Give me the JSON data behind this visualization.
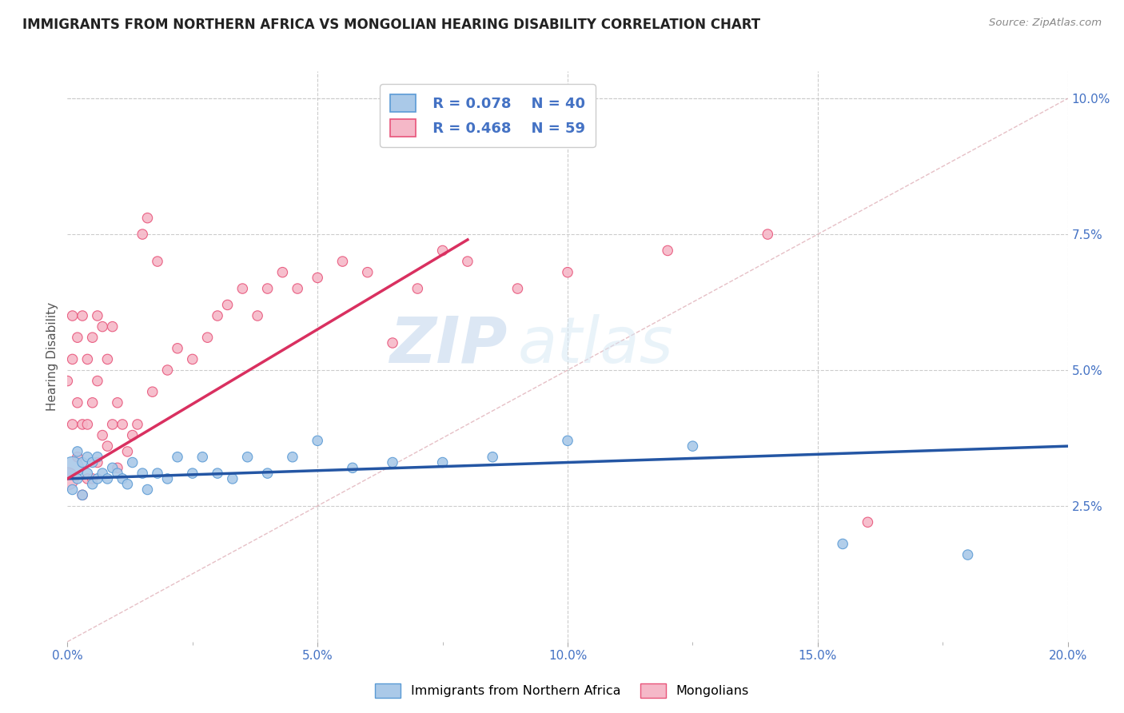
{
  "title": "IMMIGRANTS FROM NORTHERN AFRICA VS MONGOLIAN HEARING DISABILITY CORRELATION CHART",
  "source": "Source: ZipAtlas.com",
  "ylabel": "Hearing Disability",
  "watermark_zip": "ZIP",
  "watermark_atlas": "atlas",
  "xlim": [
    0.0,
    0.2
  ],
  "ylim": [
    0.0,
    0.105
  ],
  "blue_R": "0.078",
  "blue_N": 40,
  "pink_R": "0.468",
  "pink_N": 59,
  "blue_color": "#aac9e8",
  "pink_color": "#f5b8c8",
  "blue_edge_color": "#5b9bd5",
  "pink_edge_color": "#e8547a",
  "blue_line_color": "#2456a4",
  "pink_line_color": "#d93060",
  "background_color": "#ffffff",
  "grid_color": "#cccccc",
  "legend_label_blue": "Immigrants from Northern Africa",
  "legend_label_pink": "Mongolians",
  "blue_scatter_x": [
    0.001,
    0.001,
    0.002,
    0.002,
    0.003,
    0.003,
    0.004,
    0.004,
    0.005,
    0.005,
    0.006,
    0.006,
    0.007,
    0.008,
    0.009,
    0.01,
    0.011,
    0.012,
    0.013,
    0.015,
    0.016,
    0.018,
    0.02,
    0.022,
    0.025,
    0.027,
    0.03,
    0.033,
    0.036,
    0.04,
    0.045,
    0.05,
    0.057,
    0.065,
    0.075,
    0.085,
    0.1,
    0.125,
    0.155,
    0.18
  ],
  "blue_scatter_y": [
    0.032,
    0.028,
    0.035,
    0.03,
    0.033,
    0.027,
    0.031,
    0.034,
    0.029,
    0.033,
    0.03,
    0.034,
    0.031,
    0.03,
    0.032,
    0.031,
    0.03,
    0.029,
    0.033,
    0.031,
    0.028,
    0.031,
    0.03,
    0.034,
    0.031,
    0.034,
    0.031,
    0.03,
    0.034,
    0.031,
    0.034,
    0.037,
    0.032,
    0.033,
    0.033,
    0.034,
    0.037,
    0.036,
    0.018,
    0.016
  ],
  "blue_scatter_size": [
    400,
    80,
    80,
    80,
    80,
    80,
    80,
    80,
    80,
    80,
    80,
    80,
    80,
    80,
    80,
    80,
    80,
    80,
    80,
    80,
    80,
    80,
    80,
    80,
    80,
    80,
    80,
    80,
    80,
    80,
    80,
    80,
    80,
    80,
    80,
    80,
    80,
    80,
    80,
    80
  ],
  "pink_scatter_x": [
    0.0,
    0.0,
    0.001,
    0.001,
    0.001,
    0.002,
    0.002,
    0.002,
    0.003,
    0.003,
    0.003,
    0.004,
    0.004,
    0.004,
    0.005,
    0.005,
    0.005,
    0.006,
    0.006,
    0.006,
    0.007,
    0.007,
    0.008,
    0.008,
    0.009,
    0.009,
    0.01,
    0.01,
    0.011,
    0.012,
    0.013,
    0.014,
    0.015,
    0.016,
    0.017,
    0.018,
    0.02,
    0.022,
    0.025,
    0.028,
    0.03,
    0.032,
    0.035,
    0.038,
    0.04,
    0.043,
    0.046,
    0.05,
    0.055,
    0.06,
    0.065,
    0.07,
    0.075,
    0.08,
    0.09,
    0.1,
    0.12,
    0.14,
    0.16
  ],
  "pink_scatter_y": [
    0.03,
    0.048,
    0.04,
    0.052,
    0.06,
    0.034,
    0.044,
    0.056,
    0.027,
    0.04,
    0.06,
    0.03,
    0.04,
    0.052,
    0.03,
    0.044,
    0.056,
    0.033,
    0.048,
    0.06,
    0.038,
    0.058,
    0.036,
    0.052,
    0.04,
    0.058,
    0.032,
    0.044,
    0.04,
    0.035,
    0.038,
    0.04,
    0.075,
    0.078,
    0.046,
    0.07,
    0.05,
    0.054,
    0.052,
    0.056,
    0.06,
    0.062,
    0.065,
    0.06,
    0.065,
    0.068,
    0.065,
    0.067,
    0.07,
    0.068,
    0.055,
    0.065,
    0.072,
    0.07,
    0.065,
    0.068,
    0.072,
    0.075,
    0.022
  ],
  "pink_scatter_size": [
    400,
    80,
    80,
    80,
    80,
    80,
    80,
    80,
    80,
    80,
    80,
    80,
    80,
    80,
    80,
    80,
    80,
    80,
    80,
    80,
    80,
    80,
    80,
    80,
    80,
    80,
    80,
    80,
    80,
    80,
    80,
    80,
    80,
    80,
    80,
    80,
    80,
    80,
    80,
    80,
    80,
    80,
    80,
    80,
    80,
    80,
    80,
    80,
    80,
    80,
    80,
    80,
    80,
    80,
    80,
    80,
    80,
    80,
    80
  ]
}
